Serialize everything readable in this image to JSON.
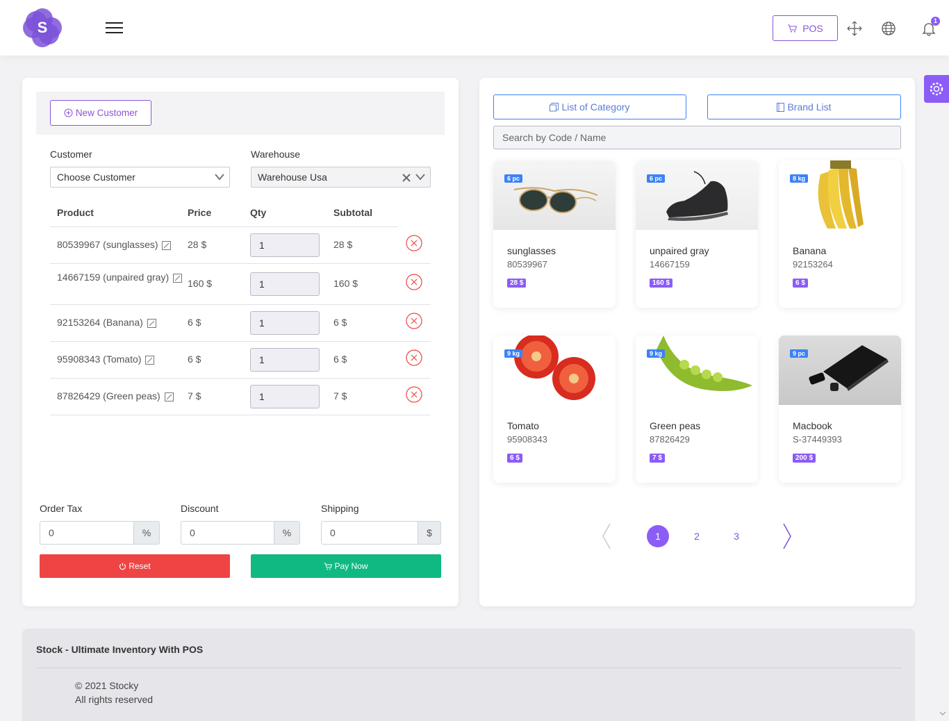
{
  "header": {
    "logo_letter": "S",
    "pos_label": "POS",
    "notification_count": "1"
  },
  "left": {
    "new_customer_label": "New Customer",
    "customer_label": "Customer",
    "customer_value": "Choose Customer",
    "warehouse_label": "Warehouse",
    "warehouse_value": "Warehouse Usa",
    "columns": [
      "Product",
      "Price",
      "Qty",
      "Subtotal"
    ],
    "rows": [
      {
        "product": "80539967 (sunglasses)",
        "price": "28 $",
        "qty": "1",
        "subtotal": "28 $"
      },
      {
        "product": "14667159 (unpaired gray)",
        "price": "160 $",
        "qty": "1",
        "subtotal": "160 $"
      },
      {
        "product": "92153264 (Banana)",
        "price": "6 $",
        "qty": "1",
        "subtotal": "6 $"
      },
      {
        "product": "95908343 (Tomato)",
        "price": "6 $",
        "qty": "1",
        "subtotal": "6 $"
      },
      {
        "product": "87826429 (Green peas)",
        "price": "7 $",
        "qty": "1",
        "subtotal": "7 $"
      }
    ],
    "order_tax_label": "Order Tax",
    "order_tax_value": "0",
    "order_tax_unit": "%",
    "discount_label": "Discount",
    "discount_value": "0",
    "discount_unit": "%",
    "shipping_label": "Shipping",
    "shipping_value": "0",
    "shipping_unit": "$",
    "reset_label": "Reset",
    "pay_label": "Pay Now"
  },
  "right": {
    "category_label": "List of Category",
    "brand_label": "Brand List",
    "search_placeholder": "Search by Code / Name",
    "products": [
      {
        "name": "sunglasses",
        "code": "80539967",
        "price": "28 $",
        "stock": "6 pc",
        "icon": "sunglasses-image"
      },
      {
        "name": "unpaired gray",
        "code": "14667159",
        "price": "160 $",
        "stock": "6 pc",
        "icon": "sneaker-image"
      },
      {
        "name": "Banana",
        "code": "92153264",
        "price": "6 $",
        "stock": "8 kg",
        "icon": "banana-image"
      },
      {
        "name": "Tomato",
        "code": "95908343",
        "price": "6 $",
        "stock": "9 kg",
        "icon": "tomato-image"
      },
      {
        "name": "Green peas",
        "code": "87826429",
        "price": "7 $",
        "stock": "9 kg",
        "icon": "peas-image"
      },
      {
        "name": "Macbook",
        "code": "S-37449393",
        "price": "200 $",
        "stock": "9 pc",
        "icon": "laptop-image"
      }
    ],
    "pages": [
      "1",
      "2",
      "3"
    ],
    "current_page": "1"
  },
  "footer": {
    "title": "Stock - Ultimate Inventory With POS",
    "copyright": "© 2021 Stocky",
    "rights": "All rights reserved"
  },
  "colors": {
    "accent": "#8b5cf6",
    "blue": "#3b82f6",
    "danger": "#ef4444",
    "success": "#10b981"
  }
}
